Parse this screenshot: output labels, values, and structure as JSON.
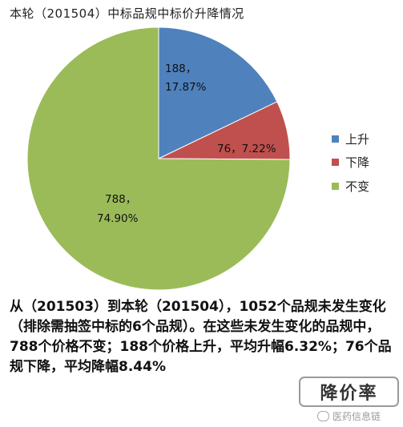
{
  "chart_data": {
    "type": "pie",
    "title": "本轮（201504）中标品规中标价升降情况",
    "categories": [
      "上升",
      "下降",
      "不变"
    ],
    "values": [
      188,
      76,
      788
    ],
    "percent_labels": [
      "17.87%",
      "7.22%",
      "74.90%"
    ],
    "slice_labels": [
      [
        "188，",
        "17.87%"
      ],
      [
        "76，7.22%"
      ],
      [
        "788，",
        "74.90%"
      ]
    ],
    "colors": [
      "#4F81BD",
      "#C0504D",
      "#9BBB59"
    ],
    "legend": "right"
  },
  "summary_text": "从（201503）到本轮（201504），1052个品规未发生变化（排除需抽签中标的6个品规）。在这些未发生变化的品规中，788个价格不变；188个价格上升，平均升幅6.32%；76个品规下降，平均降幅8.44%",
  "badge_text": "降价率",
  "watermark_text": "医药信息链"
}
